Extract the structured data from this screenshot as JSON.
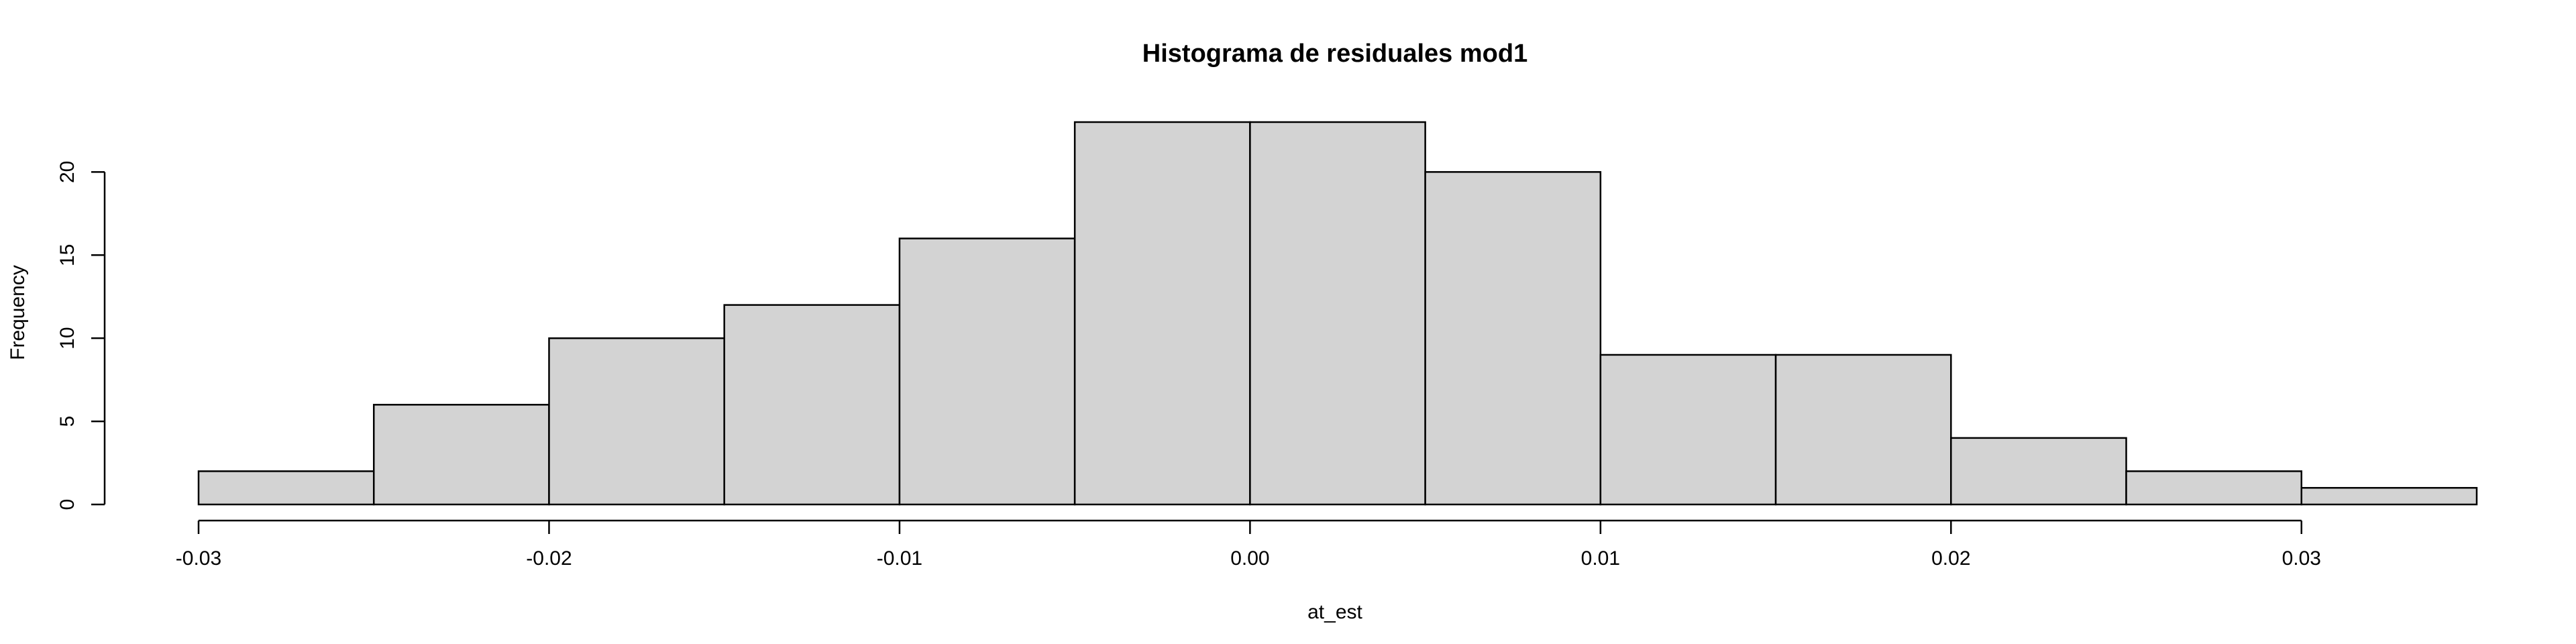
{
  "chart_data": {
    "type": "bar",
    "title": "Histograma de residuales mod1",
    "xlabel": "at_est",
    "ylabel": "Frequency",
    "bins": [
      {
        "from": -0.03,
        "to": -0.025,
        "count": 2
      },
      {
        "from": -0.025,
        "to": -0.02,
        "count": 6
      },
      {
        "from": -0.02,
        "to": -0.015,
        "count": 10
      },
      {
        "from": -0.015,
        "to": -0.01,
        "count": 12
      },
      {
        "from": -0.01,
        "to": -0.005,
        "count": 16
      },
      {
        "from": -0.005,
        "to": 0.0,
        "count": 23
      },
      {
        "from": 0.0,
        "to": 0.005,
        "count": 23
      },
      {
        "from": 0.005,
        "to": 0.01,
        "count": 20
      },
      {
        "from": 0.01,
        "to": 0.015,
        "count": 9
      },
      {
        "from": 0.015,
        "to": 0.02,
        "count": 9
      },
      {
        "from": 0.02,
        "to": 0.025,
        "count": 4
      },
      {
        "from": 0.025,
        "to": 0.03,
        "count": 2
      },
      {
        "from": 0.03,
        "to": 0.035,
        "count": 1
      }
    ],
    "xlim": [
      -0.03,
      0.035
    ],
    "ylim": [
      0,
      23
    ],
    "x_ticks": [
      -0.03,
      -0.02,
      -0.01,
      0.0,
      0.01,
      0.02,
      0.03
    ],
    "x_tick_labels": [
      "-0.03",
      "-0.02",
      "-0.01",
      "0.00",
      "0.01",
      "0.02",
      "0.03"
    ],
    "y_ticks": [
      0,
      5,
      10,
      15,
      20
    ],
    "y_tick_labels": [
      "0",
      "5",
      "10",
      "15",
      "20"
    ],
    "grid": false,
    "legend": "none",
    "bar_color": "#d3d3d3",
    "edge_color": "#000000"
  }
}
